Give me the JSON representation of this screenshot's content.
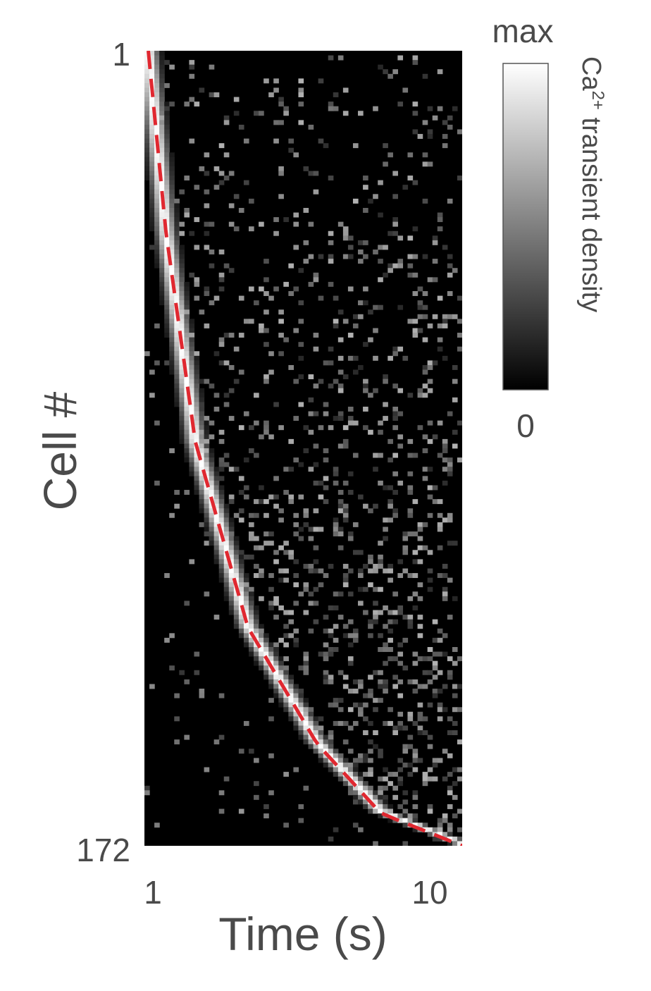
{
  "chart_data": {
    "type": "heatmap",
    "title": "",
    "xlabel": "Time (s)",
    "ylabel": "Cell #",
    "x_scale": "log",
    "xlim": [
      0.97,
      12
    ],
    "ylim": [
      1,
      172
    ],
    "x_tick_labels": [
      {
        "value": 1,
        "label": "1"
      },
      {
        "value": 10,
        "label": "10"
      }
    ],
    "y_tick_labels": [
      {
        "value": 1,
        "label": "1"
      },
      {
        "value": 172,
        "label": "172"
      }
    ],
    "n_cells": 172,
    "colormap": "gray",
    "colorbar": {
      "label_main": "Ca",
      "label_sup": "2+",
      "label_rest": " transient density",
      "max_label": "max",
      "min_label": "0"
    },
    "peak_fit_curve": {
      "style": "dashed",
      "color": "#e02830",
      "points": [
        [
          1,
          1
        ],
        [
          1.15,
          40
        ],
        [
          1.45,
          85
        ],
        [
          2.2,
          125
        ],
        [
          3.8,
          150
        ],
        [
          6.3,
          165
        ],
        [
          12,
          172
        ]
      ]
    }
  }
}
